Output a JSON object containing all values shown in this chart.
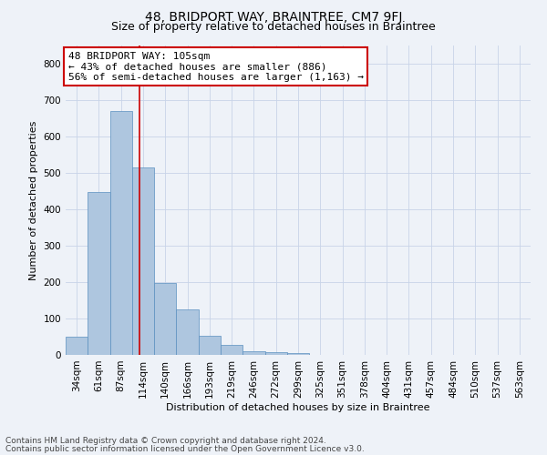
{
  "title": "48, BRIDPORT WAY, BRAINTREE, CM7 9FJ",
  "subtitle": "Size of property relative to detached houses in Braintree",
  "xlabel": "Distribution of detached houses by size in Braintree",
  "ylabel": "Number of detached properties",
  "categories": [
    "34sqm",
    "61sqm",
    "87sqm",
    "114sqm",
    "140sqm",
    "166sqm",
    "193sqm",
    "219sqm",
    "246sqm",
    "272sqm",
    "299sqm",
    "325sqm",
    "351sqm",
    "378sqm",
    "404sqm",
    "431sqm",
    "457sqm",
    "484sqm",
    "510sqm",
    "537sqm",
    "563sqm"
  ],
  "bar_heights": [
    50,
    448,
    670,
    515,
    197,
    125,
    52,
    27,
    10,
    8,
    5,
    0,
    0,
    0,
    0,
    0,
    0,
    0,
    0,
    0,
    0
  ],
  "bar_color": "#aec6df",
  "bar_edge_color": "#5a8fbf",
  "vline_x": 2.82,
  "vline_color": "#cc0000",
  "annotation_text": "48 BRIDPORT WAY: 105sqm\n← 43% of detached houses are smaller (886)\n56% of semi-detached houses are larger (1,163) →",
  "annotation_box_color": "#ffffff",
  "annotation_box_edge_color": "#cc0000",
  "ylim": [
    0,
    850
  ],
  "yticks": [
    0,
    100,
    200,
    300,
    400,
    500,
    600,
    700,
    800
  ],
  "footer1": "Contains HM Land Registry data © Crown copyright and database right 2024.",
  "footer2": "Contains public sector information licensed under the Open Government Licence v3.0.",
  "background_color": "#eef2f8",
  "plot_background": "#eef2f8",
  "grid_color": "#c8d4e8",
  "title_fontsize": 10,
  "subtitle_fontsize": 9,
  "axis_label_fontsize": 8,
  "tick_fontsize": 7.5,
  "annotation_fontsize": 8,
  "footer_fontsize": 6.5
}
